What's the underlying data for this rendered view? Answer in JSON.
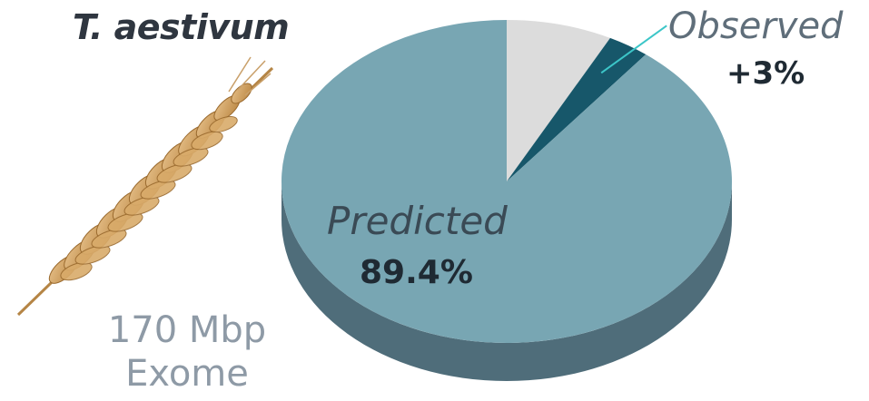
{
  "species": "T. aestivum",
  "genome": {
    "size": "170 Mbp",
    "type": "Exome"
  },
  "colors": {
    "predicted": "#78a6b3",
    "observed": "#17576a",
    "remainder": "#dcdcdc",
    "side": "#4f6d7a",
    "leader_line": "#3cc6c8"
  },
  "chart_data": {
    "type": "pie",
    "slices": [
      {
        "label": "Predicted",
        "value_label": "89.4%",
        "value": 89.4,
        "color": "#78a6b3"
      },
      {
        "label": "Observed",
        "value_label": "+3%",
        "value": 3.0,
        "color": "#17576a"
      },
      {
        "label": "",
        "value_label": "",
        "value": 7.6,
        "color": "#dcdcdc"
      }
    ],
    "style": "3d-tilted"
  }
}
